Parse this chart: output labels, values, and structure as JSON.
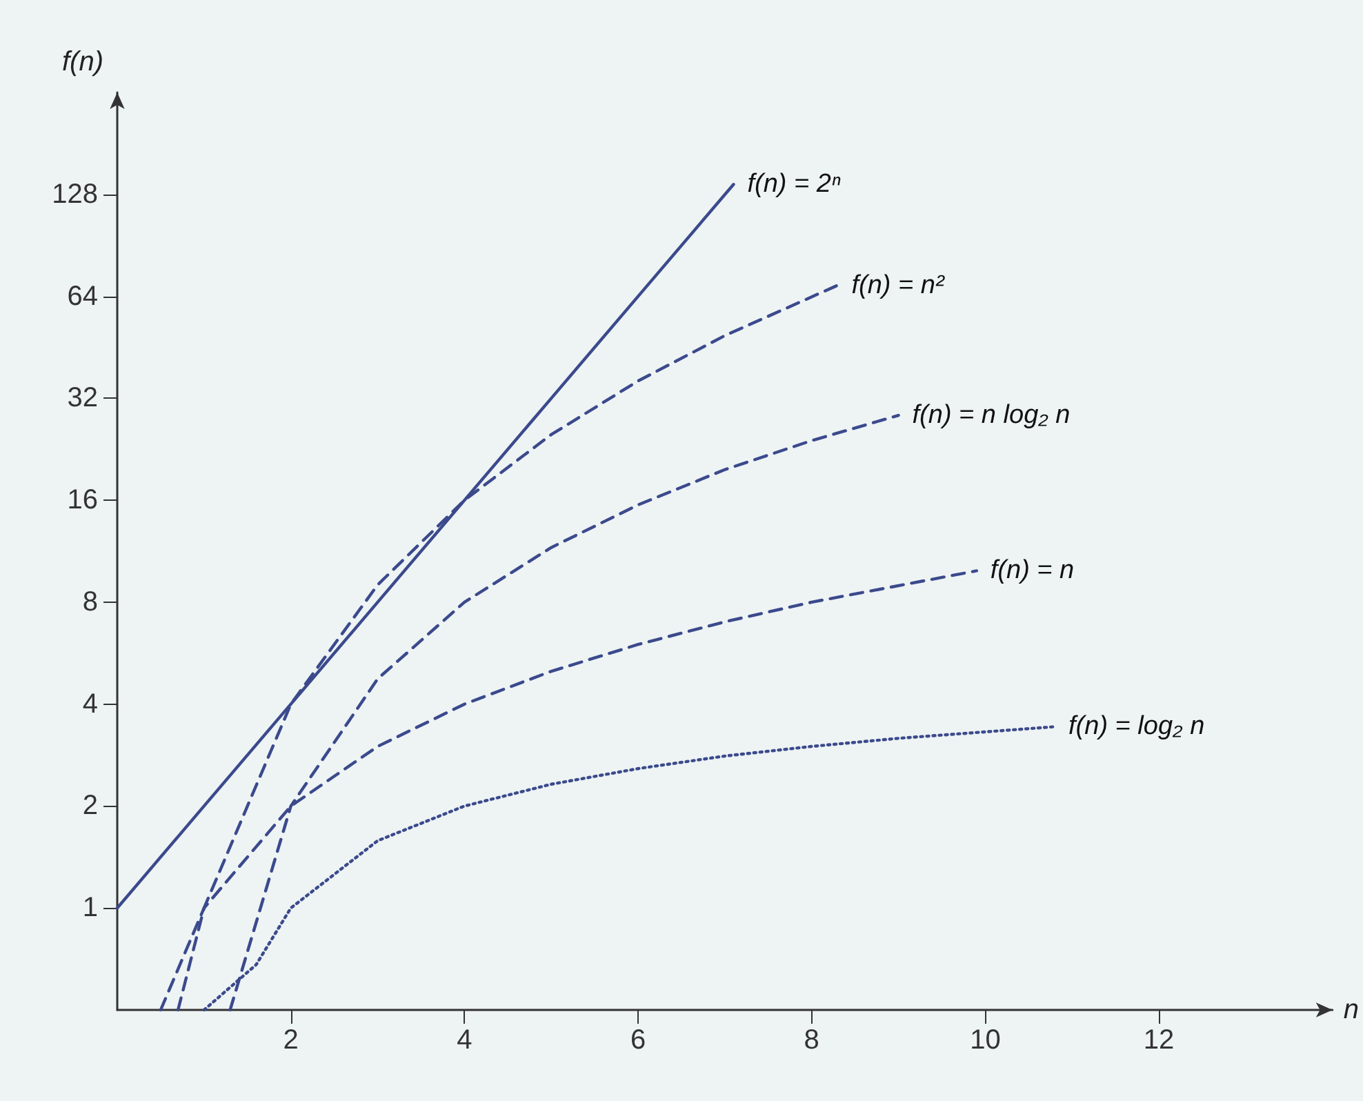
{
  "chart_data": {
    "type": "line",
    "xlabel": "n",
    "ylabel": "f(n)",
    "log": "y",
    "grid": false,
    "marker": "none",
    "xlim": [
      0,
      14
    ],
    "xticks": [
      2,
      4,
      6,
      8,
      10,
      12
    ],
    "ylim": [
      0.5,
      256
    ],
    "yticks": [
      1,
      2,
      4,
      8,
      16,
      32,
      64,
      128
    ],
    "series": [
      {
        "name": "f(n) = 2ⁿ",
        "color": "#3b4a8c",
        "line_style": "solid",
        "x": [
          0,
          1,
          2,
          3,
          4,
          5,
          6,
          7.1
        ],
        "values": [
          1,
          2,
          4,
          8,
          16,
          32,
          64,
          137
        ]
      },
      {
        "name": "f(n) = n²",
        "color": "#3b4a8c",
        "line_style": "dashed",
        "x": [
          0.7,
          1,
          2,
          3,
          4,
          5,
          6,
          7,
          8.3
        ],
        "values": [
          0.5,
          1,
          4,
          9,
          16,
          25,
          36,
          49,
          69
        ]
      },
      {
        "name": "f(n) = n log₂ n",
        "color": "#3b4a8c",
        "line_style": "dashed",
        "x": [
          1.3,
          2,
          3,
          4,
          5,
          6,
          7,
          8,
          9
        ],
        "values": [
          0.5,
          2,
          4.75,
          8,
          11.6,
          15.5,
          19.7,
          24,
          28.5
        ]
      },
      {
        "name": "f(n) = n",
        "color": "#3b4a8c",
        "line_style": "dashed",
        "x": [
          0.5,
          1,
          2,
          3,
          4,
          5,
          6,
          7,
          8,
          9.9
        ],
        "values": [
          0.5,
          1,
          2,
          3,
          4,
          5,
          6,
          7,
          8,
          9.9
        ]
      },
      {
        "name": "f(n) = log₂ n",
        "color": "#3b4a8c",
        "line_style": "dotted",
        "x": [
          1,
          1.6,
          2,
          3,
          4,
          5,
          6,
          7,
          8,
          9,
          10.8
        ],
        "values": [
          0.5,
          0.68,
          1,
          1.58,
          2,
          2.32,
          2.58,
          2.81,
          3,
          3.17,
          3.43
        ]
      }
    ]
  }
}
